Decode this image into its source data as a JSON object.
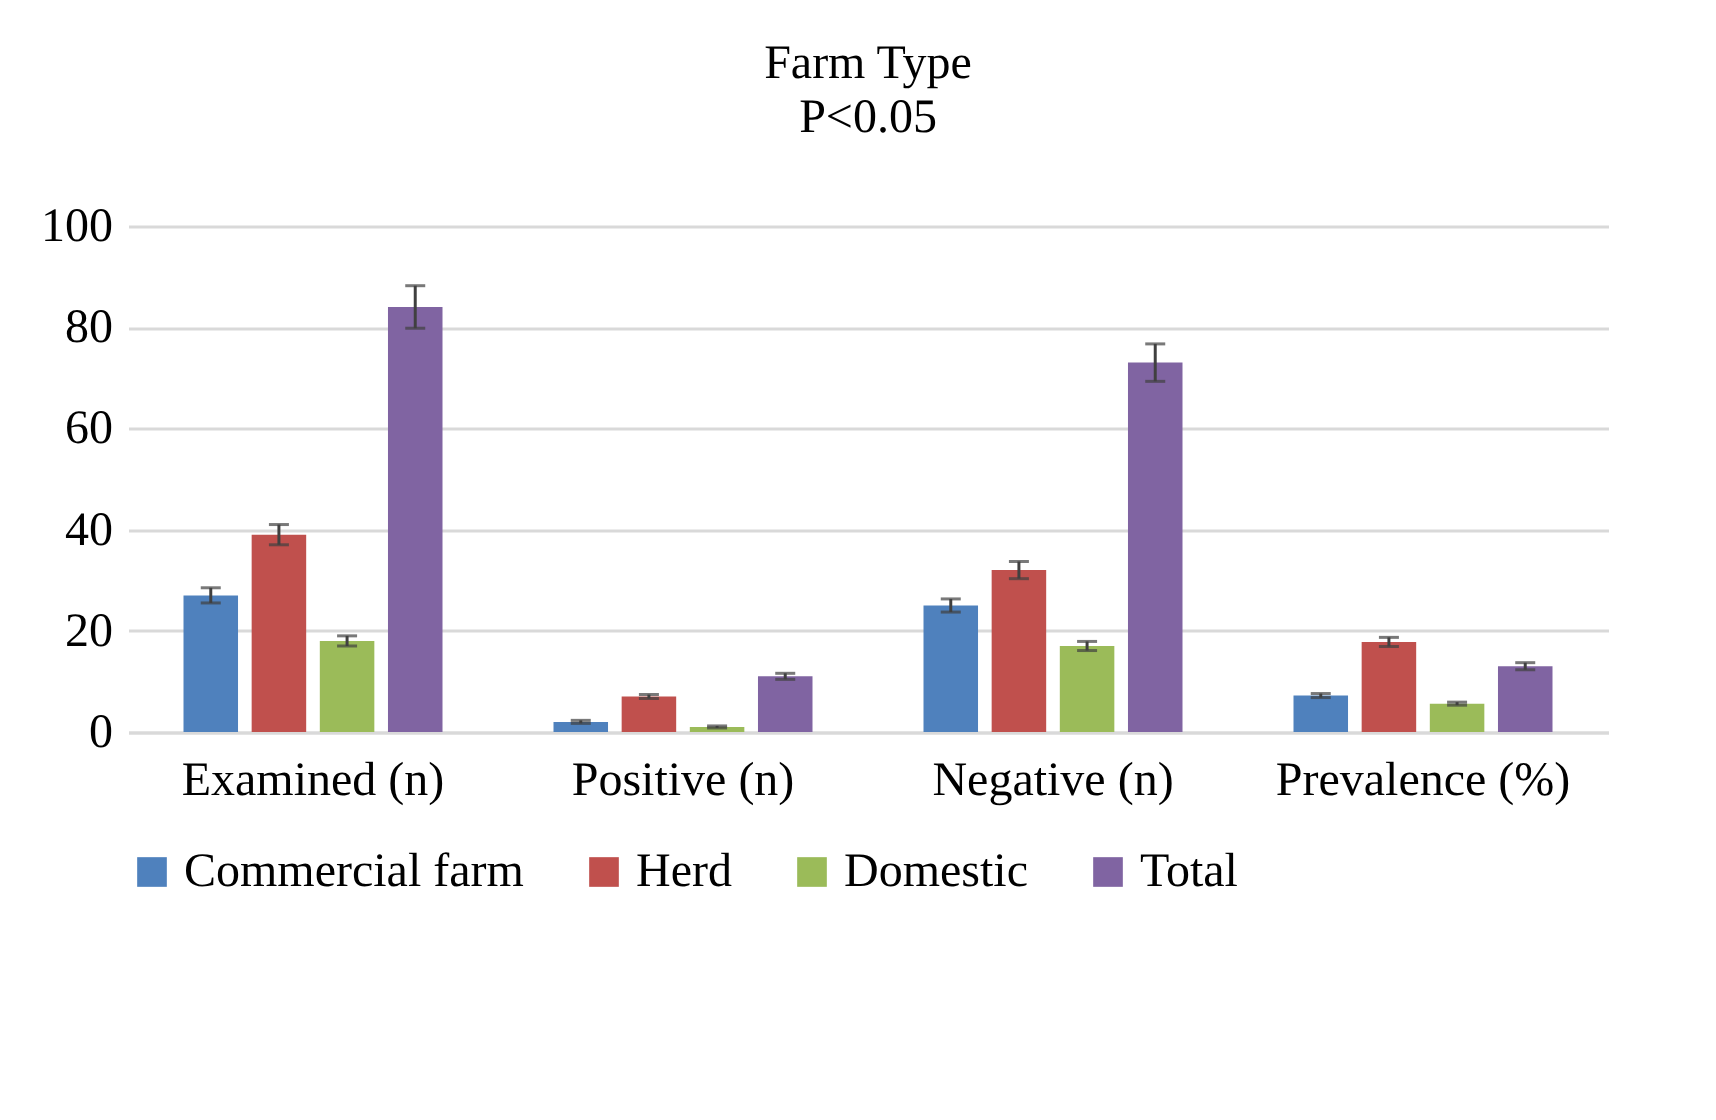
{
  "chart_data": {
    "type": "bar",
    "title": "Farm Type",
    "subtitle": "P<0.05",
    "categories": [
      "Examined (n)",
      "Positive (n)",
      "Negative (n)",
      "Prevalence (%)"
    ],
    "series": [
      {
        "name": "Commercial farm",
        "color": "#4f81bd",
        "values": [
          27,
          2,
          25,
          7.2
        ],
        "errors": [
          1.5,
          0.3,
          1.3,
          0.4
        ]
      },
      {
        "name": "Herd",
        "color": "#c0504d",
        "values": [
          39,
          7,
          32,
          17.8
        ],
        "errors": [
          2,
          0.4,
          1.7,
          0.9
        ]
      },
      {
        "name": "Domestic",
        "color": "#9bbb59",
        "values": [
          18,
          1,
          17,
          5.6
        ],
        "errors": [
          1,
          0.2,
          0.9,
          0.3
        ]
      },
      {
        "name": "Total",
        "color": "#8064a2",
        "values": [
          84,
          11,
          73,
          13
        ],
        "errors": [
          4.2,
          0.6,
          3.7,
          0.7
        ]
      }
    ],
    "ylim": [
      0,
      100
    ],
    "yticks": [
      0,
      20,
      40,
      60,
      80,
      100
    ],
    "grid": true,
    "legend": "bottom"
  }
}
